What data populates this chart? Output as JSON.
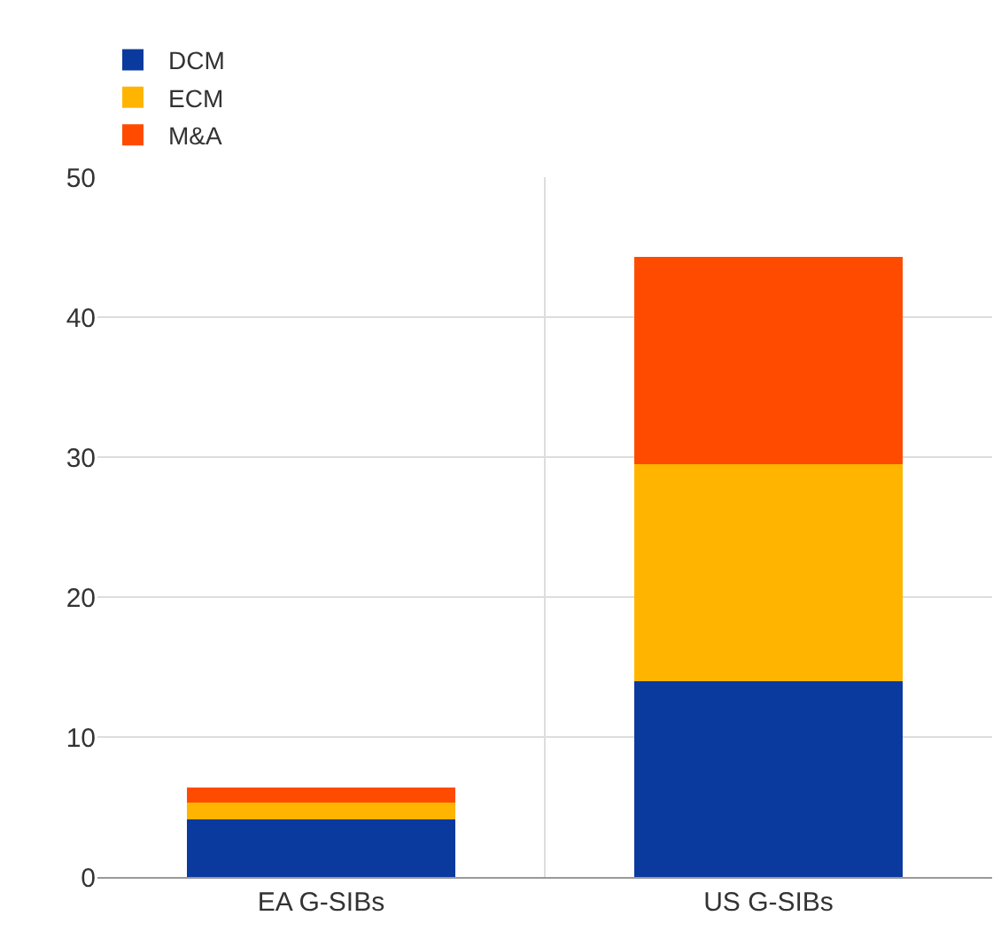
{
  "chart_data": {
    "type": "bar",
    "stacked": true,
    "categories": [
      "EA G-SIBs",
      "US G-SIBs"
    ],
    "series": [
      {
        "name": "DCM",
        "color": "#0b3a9e",
        "values": [
          4.1,
          14.0
        ]
      },
      {
        "name": "ECM",
        "color": "#ffb400",
        "values": [
          1.2,
          15.5
        ]
      },
      {
        "name": "M&A",
        "color": "#ff4b00",
        "values": [
          1.1,
          14.8
        ]
      }
    ],
    "ylim": [
      0,
      50
    ],
    "yticks": [
      0,
      10,
      20,
      30,
      40,
      50
    ],
    "grid": true,
    "legend": "top left"
  }
}
